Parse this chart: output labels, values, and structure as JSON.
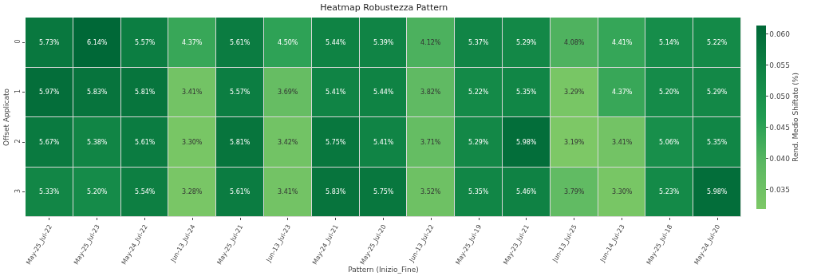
{
  "chart_data": {
    "type": "heatmap",
    "title": "Heatmap Robustezza Pattern",
    "xlabel": "Pattern (Inizio_Fine)",
    "ylabel": "Offset Applicato",
    "clabel": "Rend. Medio Shiftato (%)",
    "categories": [
      "May-25_Jul-22",
      "May-25_Jul-23",
      "May-24_Jul-22",
      "Jun-13_Jul-24",
      "May-25_Jul-21",
      "Jun-13_Jul-23",
      "May-24_Jul-21",
      "May-25_Jul-20",
      "Jun-13_Jul-22",
      "May-25_Jul-19",
      "May-23_Jul-21",
      "Jun-13_Jul-25",
      "Jun-14_Jul-23",
      "May-25_Jul-18",
      "May-24_Jul-20"
    ],
    "y_categories": [
      "0",
      "1",
      "2",
      "3"
    ],
    "cells": [
      [
        0.0573,
        0.0614,
        0.0557,
        0.0437,
        0.0561,
        0.045,
        0.0544,
        0.0539,
        0.0412,
        0.0537,
        0.0529,
        0.0408,
        0.0441,
        0.0514,
        0.0522
      ],
      [
        0.0597,
        0.0583,
        0.0581,
        0.0341,
        0.0557,
        0.0369,
        0.0541,
        0.0544,
        0.0382,
        0.0522,
        0.0535,
        0.0329,
        0.0437,
        0.052,
        0.0529
      ],
      [
        0.0567,
        0.0538,
        0.0561,
        0.033,
        0.0581,
        0.0342,
        0.0575,
        0.0541,
        0.0371,
        0.0529,
        0.0598,
        0.0319,
        0.0341,
        0.0506,
        0.0535
      ],
      [
        0.0533,
        0.052,
        0.0554,
        0.0328,
        0.0561,
        0.0341,
        0.0583,
        0.0575,
        0.0352,
        0.0535,
        0.0546,
        0.0379,
        0.033,
        0.0523,
        0.0598
      ]
    ],
    "cell_labels": [
      [
        "5.73%",
        "6.14%",
        "5.57%",
        "4.37%",
        "5.61%",
        "4.50%",
        "5.44%",
        "5.39%",
        "4.12%",
        "5.37%",
        "5.29%",
        "4.08%",
        "4.41%",
        "5.14%",
        "5.22%"
      ],
      [
        "5.97%",
        "5.83%",
        "5.81%",
        "3.41%",
        "5.57%",
        "3.69%",
        "5.41%",
        "5.44%",
        "3.82%",
        "5.22%",
        "5.35%",
        "3.29%",
        "4.37%",
        "5.20%",
        "5.29%"
      ],
      [
        "5.67%",
        "5.38%",
        "5.61%",
        "3.30%",
        "5.81%",
        "3.42%",
        "5.75%",
        "5.41%",
        "3.71%",
        "5.29%",
        "5.98%",
        "3.19%",
        "3.41%",
        "5.06%",
        "5.35%"
      ],
      [
        "5.33%",
        "5.20%",
        "5.54%",
        "3.28%",
        "5.61%",
        "3.41%",
        "5.83%",
        "5.75%",
        "3.52%",
        "5.35%",
        "5.46%",
        "3.79%",
        "3.30%",
        "5.23%",
        "5.98%"
      ]
    ],
    "clim": [
      0.0319,
      0.0614
    ],
    "cticks": [
      0.035,
      {
        "value": 0.04,
        "label": "0.040"
      },
      0.045,
      {
        "value": 0.05,
        "label": "0.050"
      },
      0.055,
      {
        "value": 0.06,
        "label": "0.060"
      }
    ]
  }
}
